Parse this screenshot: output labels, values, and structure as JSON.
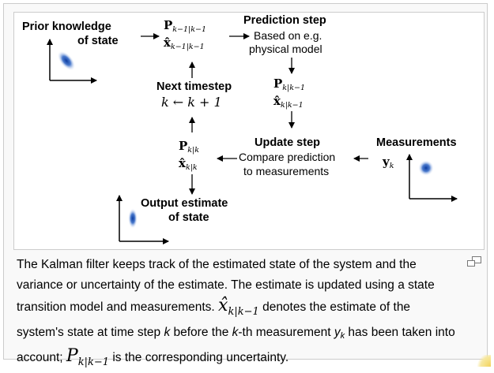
{
  "diagram": {
    "prior_label_line1": "Prior knowledge",
    "prior_label_line2": "of state",
    "prior_math": {
      "symbol1": "P",
      "sub1": "k−1|k−1",
      "symbol2": "x̂",
      "sub2": "k−1|k−1"
    },
    "prediction_title": "Prediction step",
    "prediction_line1": "Based on e.g.",
    "prediction_line2": "physical model",
    "predicted_math": {
      "symbol1": "P",
      "sub1": "k|k−1",
      "symbol2": "x̂",
      "sub2": "k|k−1"
    },
    "next_timestep_title": "Next timestep",
    "next_timestep_formula": "k ← k + 1",
    "update_title": "Update step",
    "update_line1": "Compare prediction",
    "update_line2": "to measurements",
    "updated_math": {
      "symbol1": "P",
      "sub1": "k|k",
      "symbol2": "x̂",
      "sub2": "k|k"
    },
    "measurements_title": "Measurements",
    "measurements_symbol": "y",
    "measurements_sub": "k",
    "output_line1": "Output estimate",
    "output_line2": "of state"
  },
  "caption": {
    "part1": "The Kalman filter keeps track of the estimated state of the system and the variance or uncertainty of the estimate. The estimate is updated using a state transition model and measurements. ",
    "xhat_symbol": "x̂",
    "xhat_sub": "k|k−1",
    "part2": " denotes the estimate of the system's state at time step ",
    "k1": "k",
    "part3": " before the ",
    "k2": "k",
    "part4": "-th measurement ",
    "y_symbol": "y",
    "y_sub": "k",
    "part5": " has been taken into account; ",
    "p_symbol": "P",
    "p_sub": "k|k−1",
    "part6": " is the corresponding uncertainty."
  },
  "colors": {
    "blob": "#1a4fb0",
    "border": "#cccccc",
    "panel": "#f9f9f9"
  },
  "icons": {
    "enlarge": "magnify-icon"
  }
}
